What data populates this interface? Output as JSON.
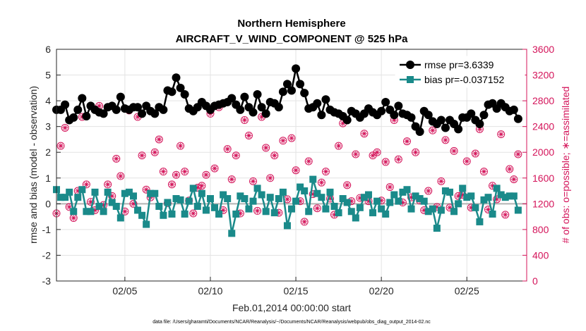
{
  "chart_data": {
    "type": "line",
    "title": "Northern Hemisphere",
    "subtitle": "AIRCRAFT_V_WIND_COMPONENT @ 525 hPa",
    "ylabel": "rmse and bias (model - observation)",
    "ylabel_right": "# of obs: o=possible; ∗=assimilated",
    "xlabel": "Feb.01,2014 00:00:00 start",
    "footnote": "data file: /Users/gharamti/Documents/NCAR/Reanalysis/~/Documents/NCAR/Reanalysis/webpub/obs_diag_output_2014-02.nc",
    "ylim": [
      -3,
      6
    ],
    "ylim_right": [
      0,
      3600
    ],
    "xlim": [
      1,
      28.5
    ],
    "yticks": [
      "-3",
      "-2",
      "-1",
      "0",
      "1",
      "2",
      "3",
      "4",
      "5",
      "6"
    ],
    "yticks_right": [
      "0",
      "400",
      "800",
      "1200",
      "1600",
      "2000",
      "2400",
      "2800",
      "3200",
      "3600"
    ],
    "xticks": [
      {
        "x": 5,
        "label": "02/05"
      },
      {
        "x": 10,
        "label": "02/10"
      },
      {
        "x": 15,
        "label": "02/15"
      },
      {
        "x": 20,
        "label": "02/20"
      },
      {
        "x": 25,
        "label": "02/25"
      }
    ],
    "legend": {
      "position": "top-right",
      "entries": [
        "rmse pr=3.6339",
        "bias pr=-0.037152"
      ]
    },
    "x_start": 1.0,
    "x_step": 0.25,
    "series": [
      {
        "name": "rmse pr=3.6339",
        "color": "#000000",
        "marker": "circle",
        "values": [
          3.65,
          3.65,
          3.85,
          3.25,
          3.35,
          3.65,
          4.1,
          3.4,
          3.8,
          3.65,
          3.55,
          3.5,
          3.75,
          3.8,
          3.65,
          4.15,
          3.7,
          3.65,
          3.75,
          3.75,
          3.5,
          3.8,
          3.6,
          3.5,
          3.75,
          3.65,
          4.4,
          4.35,
          4.9,
          4.5,
          4.25,
          3.7,
          3.6,
          3.75,
          3.95,
          3.8,
          3.65,
          3.8,
          3.85,
          3.9,
          3.95,
          4.1,
          3.85,
          3.65,
          4.15,
          3.75,
          3.55,
          4.25,
          3.75,
          3.5,
          3.95,
          3.9,
          3.75,
          4.35,
          4.65,
          4.4,
          5.25,
          4.65,
          4.3,
          3.7,
          3.75,
          3.9,
          3.45,
          4.05,
          3.65,
          3.55,
          3.5,
          3.4,
          3.25,
          3.6,
          3.5,
          3.35,
          3.5,
          3.7,
          3.55,
          3.45,
          3.6,
          3.95,
          3.65,
          3.45,
          3.8,
          3.5,
          3.45,
          3.35,
          3.0,
          2.8,
          3.6,
          3.45,
          3.2,
          3.1,
          3.25,
          2.95,
          3.25,
          3.1,
          2.9,
          3.35,
          3.35,
          3.5,
          3.25,
          3.1,
          3.45,
          3.85,
          3.9,
          3.7,
          3.9,
          3.75,
          3.6,
          3.65,
          3.3
        ]
      },
      {
        "name": "bias pr=-0.037152",
        "color": "#1a8a8a",
        "marker": "square",
        "values": [
          0.55,
          0.25,
          0.25,
          0.45,
          -0.3,
          0.25,
          0.55,
          -0.3,
          -0.3,
          0.45,
          -0.1,
          -0.3,
          0.45,
          0.05,
          -0.1,
          -0.55,
          0.4,
          0.45,
          0.3,
          -0.25,
          -0.45,
          -0.8,
          0.4,
          0.4,
          -0.1,
          -0.45,
          0.05,
          -0.4,
          0.2,
          0.15,
          -0.4,
          0.1,
          0.6,
          -0.1,
          0.4,
          -0.25,
          0.2,
          -0.15,
          -0.4,
          0.35,
          0.2,
          -1.15,
          -0.4,
          0.3,
          0.2,
          -0.2,
          0.1,
          0.6,
          0.35,
          -0.3,
          0.25,
          -0.35,
          0.2,
          0.45,
          -0.85,
          -0.2,
          0.1,
          0.65,
          0.5,
          -0.3,
          0.95,
          0.4,
          0.25,
          -0.2,
          0.45,
          -0.1,
          -0.35,
          0.2,
          0.05,
          -0.3,
          -0.55,
          -0.15,
          0.25,
          0.35,
          -0.35,
          0.1,
          -0.2,
          -0.4,
          0.05,
          0.35,
          0.1,
          0.45,
          0.55,
          -0.2,
          0.3,
          0.2,
          0.1,
          -0.3,
          -0.2,
          -0.95,
          -0.25,
          0.5,
          0.45,
          -0.3,
          0.0,
          0.6,
          0.25,
          0.3,
          -0.15,
          -0.7,
          0.15,
          0.25,
          -0.4,
          0.6,
          0.35,
          0.25,
          0.3,
          0.3,
          -0.25
        ]
      },
      {
        "name": "# of obs possible",
        "axis": "right",
        "color": "#d4145a",
        "marker": "circle-open",
        "values": [
          1050,
          2100,
          2380,
          1150,
          980,
          1400,
          2550,
          1500,
          1230,
          1100,
          2720,
          1180,
          1500,
          1320,
          1900,
          1630,
          1080,
          2650,
          1200,
          2550,
          1950,
          1420,
          1300,
          2000,
          2200,
          1700,
          1210,
          1500,
          1650,
          2100,
          1700,
          1250,
          1050,
          1450,
          1480,
          1650,
          2600,
          1750,
          2700,
          1100,
          2050,
          1580,
          1950,
          1050,
          2500,
          2260,
          1550,
          1090,
          2550,
          2070,
          1600,
          1950,
          1060,
          2180,
          1270,
          2220,
          1720,
          1240,
          920,
          1860,
          1350,
          1130,
          1530,
          1700,
          1280,
          1030,
          2100,
          2450,
          1490,
          1240,
          1970,
          1290,
          2290,
          1240,
          1950,
          2000,
          1250,
          1850,
          1460,
          2500,
          1890,
          1220,
          2170,
          1300,
          2000,
          1250,
          1100,
          1400,
          2340,
          1150,
          1550,
          2190,
          1140,
          2020,
          1320,
          1340,
          1860,
          1140,
          1980,
          2360,
          1700,
          1110,
          1480,
          1270,
          2280,
          1030,
          1740,
          1580,
          1970
        ]
      },
      {
        "name": "# of obs assimilated",
        "axis": "right",
        "color": "#d4145a",
        "marker": "asterisk",
        "values": [
          1050,
          2100,
          2380,
          1150,
          980,
          1400,
          2550,
          1500,
          1230,
          1100,
          2720,
          1180,
          1500,
          1320,
          1900,
          1630,
          1080,
          2650,
          1200,
          2550,
          1950,
          1420,
          1300,
          2000,
          2200,
          1700,
          1210,
          1500,
          1650,
          2100,
          1700,
          1250,
          1050,
          1450,
          1480,
          1650,
          2600,
          1750,
          2700,
          1100,
          2050,
          1580,
          1950,
          1050,
          2500,
          2260,
          1550,
          1090,
          2550,
          2070,
          1600,
          1950,
          1060,
          2180,
          1270,
          2220,
          1720,
          1240,
          920,
          1860,
          1350,
          1130,
          1530,
          1700,
          1280,
          1030,
          2100,
          2450,
          1490,
          1240,
          1970,
          1290,
          2290,
          1240,
          1950,
          2000,
          1250,
          1850,
          1460,
          2500,
          1890,
          1220,
          2170,
          1300,
          2000,
          1250,
          1100,
          1400,
          2340,
          1150,
          1550,
          2190,
          1140,
          2020,
          1320,
          1340,
          1860,
          1140,
          1980,
          2360,
          1700,
          1110,
          1480,
          1270,
          2280,
          1030,
          1740,
          1580,
          1970
        ]
      }
    ]
  }
}
